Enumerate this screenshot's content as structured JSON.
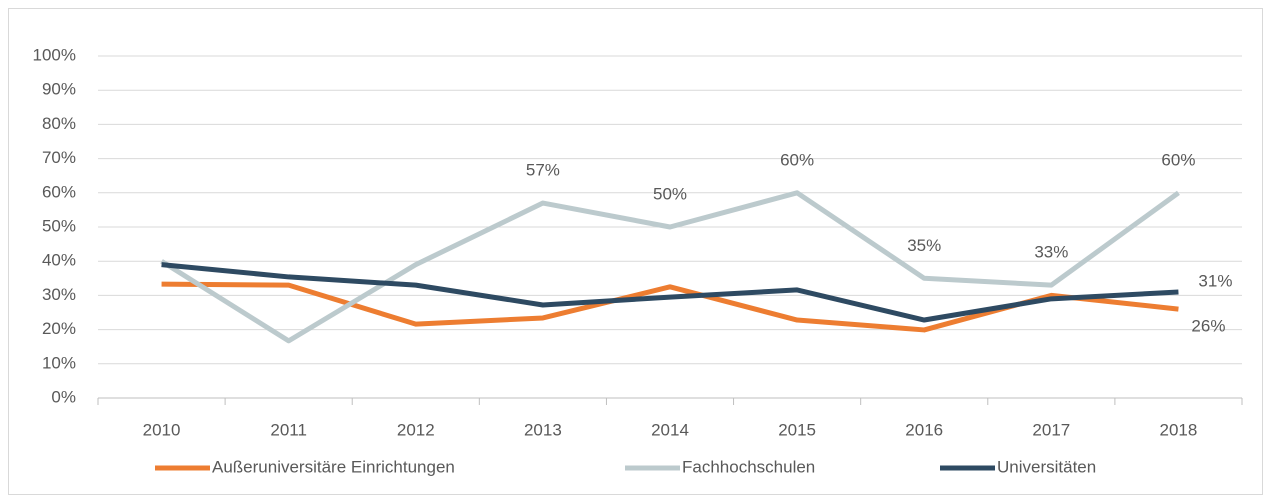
{
  "chart_data": {
    "type": "line",
    "categories": [
      "2010",
      "2011",
      "2012",
      "2013",
      "2014",
      "2015",
      "2016",
      "2017",
      "2018"
    ],
    "series": [
      {
        "name": "Außeruniversitäre Einrichtungen",
        "color": "#ed7d31",
        "values": [
          33.3,
          33,
          21.6,
          23.4,
          32.5,
          22.8,
          19.9,
          30,
          26
        ],
        "value_labels": [
          null,
          null,
          null,
          null,
          null,
          null,
          null,
          null,
          "26%"
        ]
      },
      {
        "name": "Fachhochschulen",
        "color": "#bccacd",
        "values": [
          40,
          16.7,
          39,
          57,
          50,
          60,
          35,
          33,
          60
        ],
        "value_labels": [
          null,
          null,
          null,
          "57%",
          "50%",
          "60%",
          "35%",
          "33%",
          "60%"
        ]
      },
      {
        "name": "Universitäten",
        "color": "#2e4a62",
        "values": [
          39,
          35.4,
          33,
          27.2,
          29.5,
          31.6,
          22.8,
          29,
          31
        ],
        "value_labels": [
          null,
          null,
          null,
          null,
          null,
          null,
          null,
          null,
          "31%"
        ]
      }
    ],
    "ylim": [
      0,
      100
    ],
    "yticks": [
      {
        "value": 0,
        "label": "0%"
      },
      {
        "value": 10,
        "label": "10%"
      },
      {
        "value": 20,
        "label": "20%"
      },
      {
        "value": 30,
        "label": "30%"
      },
      {
        "value": 40,
        "label": "40%"
      },
      {
        "value": 50,
        "label": "50%"
      },
      {
        "value": 60,
        "label": "60%"
      },
      {
        "value": 70,
        "label": "70%"
      },
      {
        "value": 80,
        "label": "80%"
      },
      {
        "value": 90,
        "label": "90%"
      },
      {
        "value": 100,
        "label": "100%"
      }
    ],
    "grid": true,
    "legend": "bottom"
  }
}
